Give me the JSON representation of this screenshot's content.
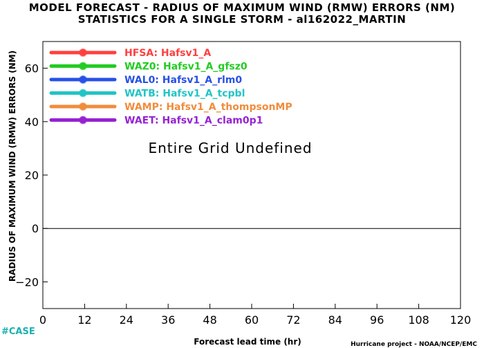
{
  "chart_data": {
    "type": "line",
    "title": "MODEL FORECAST - RADIUS OF MAXIMUM WIND (RMW) ERRORS (NM)",
    "subtitle": "STATISTICS FOR A SINGLE STORM - al162022_MARTIN",
    "xlabel": "Forecast lead time (hr)",
    "ylabel": "RADIUS OF MAXIMUM WIND (RMW) ERRORS (NM)",
    "xlim": [
      0,
      120
    ],
    "ylim": [
      -30,
      70
    ],
    "x_ticks": [
      0,
      12,
      24,
      36,
      48,
      60,
      72,
      84,
      96,
      108,
      120
    ],
    "y_ticks": [
      -20,
      0,
      20,
      40,
      60
    ],
    "zero_line": 0,
    "annotation": "Entire Grid Undefined",
    "legend_position": "top-left",
    "series": [
      {
        "name": "HFSA: Hafsv1_A",
        "color": "#ff4040",
        "values": []
      },
      {
        "name": "WAZ0: Hafsv1_A_gfsz0",
        "color": "#22cc22",
        "values": []
      },
      {
        "name": "WAL0: Hafsv1_A_rlm0",
        "color": "#2850e6",
        "values": []
      },
      {
        "name": "WATB: Hafsv1_A_tcpbl",
        "color": "#22c4c4",
        "values": []
      },
      {
        "name": "WAMP: Hafsv1_A_thompsonMP",
        "color": "#f08c3c",
        "values": []
      },
      {
        "name": "WAET: Hafsv1_A_clam0p1",
        "color": "#9622d2",
        "values": []
      }
    ]
  },
  "footer": {
    "case_label": "#CASE",
    "credit": "Hurricane project - NOAA/NCEP/EMC"
  }
}
